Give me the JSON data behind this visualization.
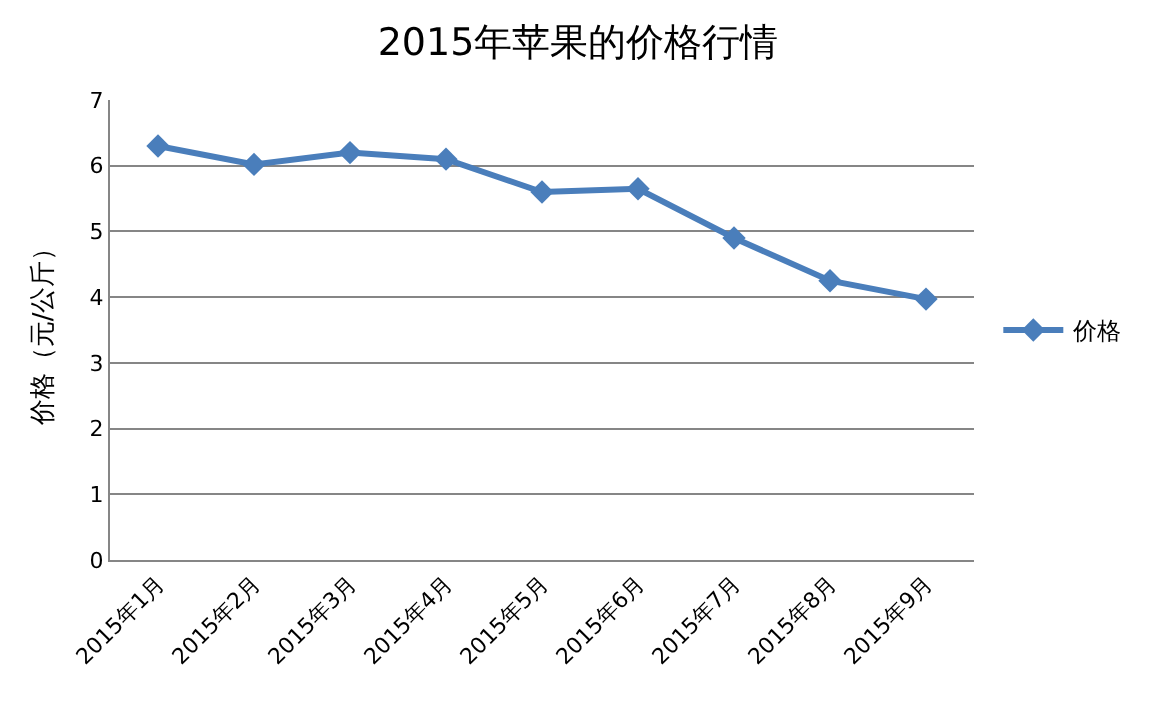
{
  "chart_data": {
    "type": "line",
    "title": "2015年苹果的价格行情",
    "ylabel": "价格（元/公斤）",
    "categories": [
      "2015年1月",
      "2015年2月",
      "2015年3月",
      "2015年4月",
      "2015年5月",
      "2015年6月",
      "2015年7月",
      "2015年8月",
      "2015年9月"
    ],
    "series": [
      {
        "name": "价格",
        "color": "#4a7ebb",
        "values": [
          6.3,
          6.02,
          6.2,
          6.1,
          5.6,
          5.65,
          4.9,
          4.25,
          3.97
        ]
      }
    ],
    "ylim": [
      0,
      7
    ],
    "yticks": [
      0,
      1,
      2,
      3,
      4,
      5,
      6,
      7
    ],
    "grid": "y",
    "legend": "right",
    "marker": "diamond",
    "line_style": "solid"
  }
}
